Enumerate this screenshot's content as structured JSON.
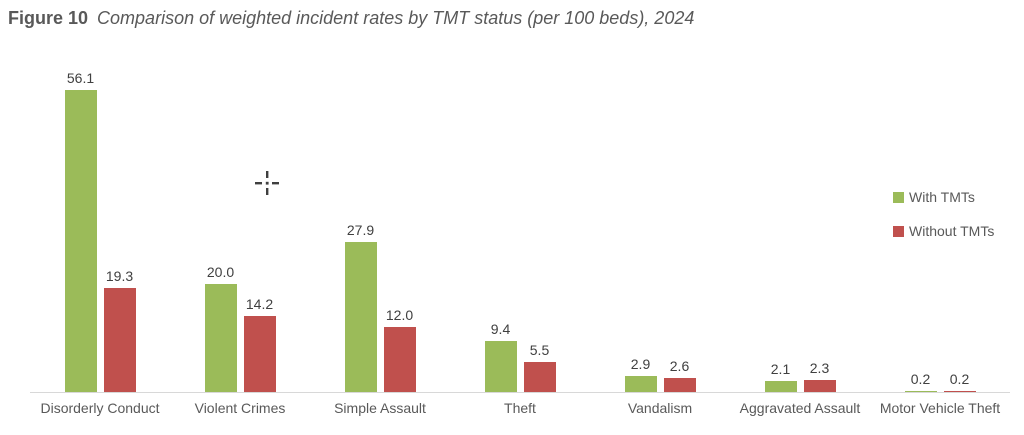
{
  "title": {
    "label": "Figure 10",
    "caption": "Comparison of weighted incident rates by TMT status (per 100 beds), 2024"
  },
  "colors": {
    "with_tmts": "#9BBB59",
    "without_tmts": "#C0504D",
    "axis_line": "#D8D8D8",
    "title_text": "#595959",
    "value_label_text": "#404040",
    "category_text": "#595959"
  },
  "legend": {
    "position": "right",
    "items": [
      {
        "label": "With TMTs",
        "color": "#9BBB59"
      },
      {
        "label": "Without TMTs",
        "color": "#C0504D"
      }
    ]
  },
  "cursor": {
    "type": "crosshair-cursor"
  },
  "chart_data": {
    "type": "bar",
    "title": "Comparison of weighted incident rates by TMT status (per 100 beds), 2024",
    "xlabel": "",
    "ylabel": "",
    "ylim": [
      0,
      60
    ],
    "grid": false,
    "data_labels": true,
    "categories": [
      "Disorderly Conduct",
      "Violent Crimes",
      "Simple Assault",
      "Theft",
      "Vandalism",
      "Aggravated Assault",
      "Motor Vehicle Theft"
    ],
    "series": [
      {
        "name": "With TMTs",
        "color": "#9BBB59",
        "values": [
          56.1,
          20.0,
          27.9,
          9.4,
          2.9,
          2.1,
          0.2
        ]
      },
      {
        "name": "Without TMTs",
        "color": "#C0504D",
        "values": [
          19.3,
          14.2,
          12.0,
          5.5,
          2.6,
          2.3,
          0.2
        ]
      }
    ]
  }
}
